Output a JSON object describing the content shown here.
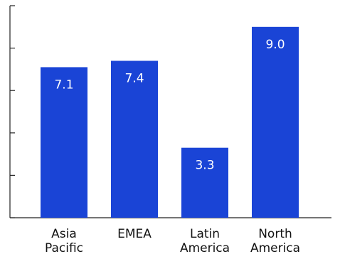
{
  "chart_data": {
    "type": "bar",
    "title": "",
    "xlabel": "",
    "ylabel": "",
    "categories": [
      [
        "Asia",
        "Pacific"
      ],
      [
        "EMEA"
      ],
      [
        "Latin",
        "America"
      ],
      [
        "North",
        "America"
      ]
    ],
    "values": [
      7.1,
      7.4,
      3.3,
      9.0
    ],
    "data_labels": [
      "7.1",
      "7.4",
      "3.3",
      "9.0"
    ],
    "ylim": [
      0,
      10
    ],
    "y_ticks": [
      0,
      2,
      4,
      6,
      8,
      10
    ],
    "y_tick_labels_shown": false,
    "grid": false,
    "legend": "none"
  },
  "colors": {
    "bar": "#1a44d6",
    "axis": "#222222",
    "bar_label": "#ffffff",
    "category_label": "#111111"
  }
}
